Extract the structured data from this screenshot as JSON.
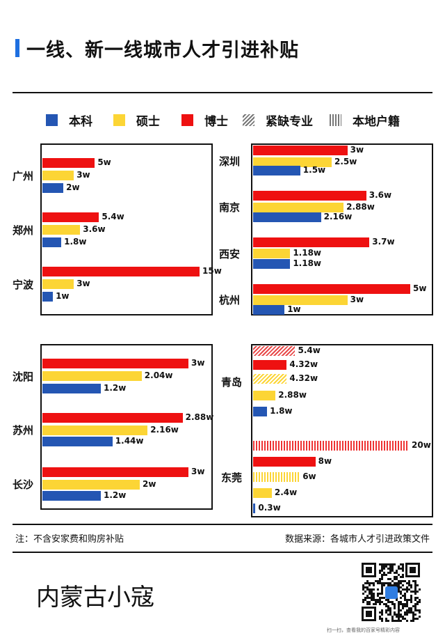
{
  "header": {
    "title": "一线、新一线城市人才引进补贴"
  },
  "colors": {
    "bachelor": "#2456b3",
    "master": "#fcd535",
    "phd": "#ee1111",
    "accent": "#1e6fe0",
    "scarce_stripe": "#e84a4a",
    "local_stripe": "#ee3333"
  },
  "legend": {
    "items": [
      {
        "key": "bachelor",
        "label": "本科"
      },
      {
        "key": "master",
        "label": "硕士"
      },
      {
        "key": "phd",
        "label": "博士"
      },
      {
        "key": "scarce",
        "label": "紧缺专业"
      },
      {
        "key": "local",
        "label": "本地户籍"
      }
    ]
  },
  "chart_data": {
    "type": "bar",
    "orientation": "horizontal",
    "unit": "w",
    "panels": [
      {
        "cities": [
          {
            "name": "广州",
            "bars": [
              {
                "type": "phd",
                "value": 5,
                "label": "5w"
              },
              {
                "type": "master",
                "value": 3,
                "label": "3w"
              },
              {
                "type": "bachelor",
                "value": 2,
                "label": "2w"
              }
            ]
          },
          {
            "name": "郑州",
            "bars": [
              {
                "type": "phd",
                "value": 5.4,
                "label": "5.4w"
              },
              {
                "type": "master",
                "value": 3.6,
                "label": "3.6w"
              },
              {
                "type": "bachelor",
                "value": 1.8,
                "label": "1.8w"
              }
            ]
          },
          {
            "name": "宁波",
            "bars": [
              {
                "type": "phd",
                "value": 15,
                "label": "15w"
              },
              {
                "type": "master",
                "value": 3,
                "label": "3w"
              },
              {
                "type": "bachelor",
                "value": 1,
                "label": "1w"
              }
            ]
          }
        ]
      },
      {
        "cities": [
          {
            "name": "深圳",
            "bars": [
              {
                "type": "phd",
                "value": 3,
                "label": "3w"
              },
              {
                "type": "master",
                "value": 2.5,
                "label": "2.5w"
              },
              {
                "type": "bachelor",
                "value": 1.5,
                "label": "1.5w"
              }
            ]
          },
          {
            "name": "南京",
            "bars": [
              {
                "type": "phd",
                "value": 3.6,
                "label": "3.6w"
              },
              {
                "type": "master",
                "value": 2.88,
                "label": "2.88w"
              },
              {
                "type": "bachelor",
                "value": 2.16,
                "label": "2.16w"
              }
            ]
          },
          {
            "name": "西安",
            "bars": [
              {
                "type": "phd",
                "value": 3.7,
                "label": "3.7w"
              },
              {
                "type": "master",
                "value": 1.18,
                "label": "1.18w"
              },
              {
                "type": "bachelor",
                "value": 1.18,
                "label": "1.18w"
              }
            ]
          },
          {
            "name": "杭州",
            "bars": [
              {
                "type": "phd",
                "value": 5,
                "label": "5w"
              },
              {
                "type": "master",
                "value": 3,
                "label": "3w"
              },
              {
                "type": "bachelor",
                "value": 1,
                "label": "1w"
              }
            ]
          }
        ]
      },
      {
        "cities": [
          {
            "name": "沈阳",
            "bars": [
              {
                "type": "phd",
                "value": 3,
                "label": "3w"
              },
              {
                "type": "master",
                "value": 2.04,
                "label": "2.04w"
              },
              {
                "type": "bachelor",
                "value": 1.2,
                "label": "1.2w"
              }
            ]
          },
          {
            "name": "苏州",
            "bars": [
              {
                "type": "phd",
                "value": 2.88,
                "label": "2.88w"
              },
              {
                "type": "master",
                "value": 2.16,
                "label": "2.16w"
              },
              {
                "type": "bachelor",
                "value": 1.44,
                "label": "1.44w"
              }
            ]
          },
          {
            "name": "长沙",
            "bars": [
              {
                "type": "phd",
                "value": 3,
                "label": "3w"
              },
              {
                "type": "master",
                "value": 2,
                "label": "2w"
              },
              {
                "type": "bachelor",
                "value": 1.2,
                "label": "1.2w"
              }
            ]
          }
        ]
      },
      {
        "cities": [
          {
            "name": "青岛",
            "bars": [
              {
                "type": "phd_scarce",
                "value": 5.4,
                "label": "5.4w"
              },
              {
                "type": "phd",
                "value": 4.32,
                "label": "4.32w"
              },
              {
                "type": "master_scarce",
                "value": 4.32,
                "label": "4.32w"
              },
              {
                "type": "master",
                "value": 2.88,
                "label": "2.88w"
              },
              {
                "type": "bachelor",
                "value": 1.8,
                "label": "1.8w"
              }
            ]
          },
          {
            "name": "东莞",
            "bars": [
              {
                "type": "phd_local",
                "value": 20,
                "label": "20w"
              },
              {
                "type": "phd",
                "value": 8,
                "label": "8w"
              },
              {
                "type": "master_local",
                "value": 6,
                "label": "6w"
              },
              {
                "type": "master",
                "value": 2.4,
                "label": "2.4w"
              },
              {
                "type": "bachelor",
                "value": 0.3,
                "label": "0.3w"
              }
            ]
          }
        ]
      }
    ]
  },
  "footer": {
    "note": "注：不含安家费和购房补贴",
    "source": "数据来源：各城市人才引进政策文件",
    "brand": "内蒙古小寇",
    "qr_caption": "扫一扫，查看我的百家号精彩内容",
    "qr_logo_icon": "qr-code-icon"
  }
}
